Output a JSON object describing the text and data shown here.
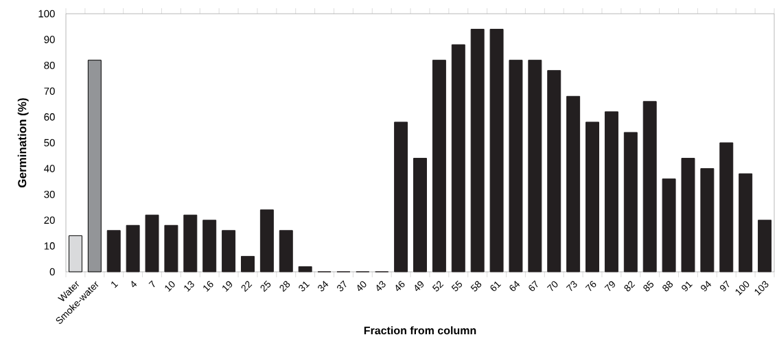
{
  "chart_data": {
    "type": "bar",
    "xlabel": "Fraction from column",
    "ylabel": "Germination (%)",
    "categories": [
      "Water",
      "Smoke-water",
      "1",
      "4",
      "7",
      "10",
      "13",
      "16",
      "19",
      "22",
      "25",
      "28",
      "31",
      "34",
      "37",
      "40",
      "43",
      "46",
      "49",
      "52",
      "55",
      "58",
      "61",
      "64",
      "67",
      "70",
      "73",
      "76",
      "79",
      "82",
      "85",
      "88",
      "91",
      "94",
      "97",
      "100",
      "103"
    ],
    "values": [
      14,
      82,
      16,
      18,
      22,
      18,
      22,
      20,
      16,
      6,
      24,
      16,
      2,
      0,
      0,
      0,
      0,
      58,
      44,
      82,
      88,
      94,
      94,
      82,
      82,
      78,
      68,
      58,
      62,
      54,
      66,
      36,
      44,
      40,
      50,
      38,
      20
    ],
    "colors": [
      "#d9dadc",
      "#939598",
      "#231f20",
      "#231f20",
      "#231f20",
      "#231f20",
      "#231f20",
      "#231f20",
      "#231f20",
      "#231f20",
      "#231f20",
      "#231f20",
      "#231f20",
      "#231f20",
      "#231f20",
      "#231f20",
      "#231f20",
      "#231f20",
      "#231f20",
      "#231f20",
      "#231f20",
      "#231f20",
      "#231f20",
      "#231f20",
      "#231f20",
      "#231f20",
      "#231f20",
      "#231f20",
      "#231f20",
      "#231f20",
      "#231f20",
      "#231f20",
      "#231f20",
      "#231f20",
      "#231f20",
      "#231f20",
      "#231f20"
    ],
    "ylim": [
      0,
      100
    ],
    "yticks": [
      0,
      10,
      20,
      30,
      40,
      50,
      60,
      70,
      80,
      90,
      100
    ]
  }
}
